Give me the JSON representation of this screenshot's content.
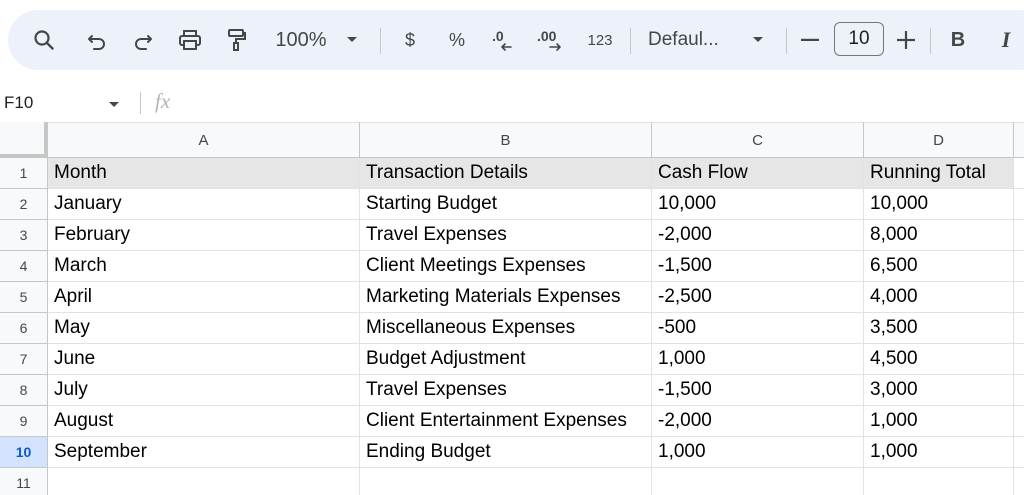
{
  "toolbar": {
    "zoom": "100%",
    "currency_label": "$",
    "percent_label": "%",
    "decrease_decimal_label": ".0",
    "increase_decimal_label": ".00",
    "number_format_label": "123",
    "font_family": "Defaul...",
    "font_size": "10",
    "bold_label": "B",
    "italic_label": "I"
  },
  "formula_bar": {
    "cell_reference": "F10",
    "fx_label": "fx",
    "formula_value": ""
  },
  "columns": [
    "A",
    "B",
    "C",
    "D"
  ],
  "active_row": "10",
  "rows": [
    {
      "num": "1",
      "cells": [
        "Month",
        "Transaction Details",
        "Cash Flow",
        "Running Total"
      ]
    },
    {
      "num": "2",
      "cells": [
        "January",
        "Starting Budget",
        "10,000",
        "10,000"
      ]
    },
    {
      "num": "3",
      "cells": [
        "February",
        "Travel Expenses",
        "-2,000",
        "8,000"
      ]
    },
    {
      "num": "4",
      "cells": [
        "March",
        "Client Meetings Expenses",
        "-1,500",
        "6,500"
      ]
    },
    {
      "num": "5",
      "cells": [
        "April",
        "Marketing Materials Expenses",
        "-2,500",
        "4,000"
      ]
    },
    {
      "num": "6",
      "cells": [
        "May",
        "Miscellaneous Expenses",
        "-500",
        "3,500"
      ]
    },
    {
      "num": "7",
      "cells": [
        "June",
        "Budget Adjustment",
        "1,000",
        "4,500"
      ]
    },
    {
      "num": "8",
      "cells": [
        "July",
        "Travel Expenses",
        "-1,500",
        "3,000"
      ]
    },
    {
      "num": "9",
      "cells": [
        "August",
        "Client Entertainment Expenses",
        "-2,000",
        "1,000"
      ]
    },
    {
      "num": "10",
      "cells": [
        "September",
        "Ending Budget",
        "1,000",
        "1,000"
      ]
    },
    {
      "num": "11",
      "cells": [
        "",
        "",
        "",
        ""
      ]
    }
  ]
}
